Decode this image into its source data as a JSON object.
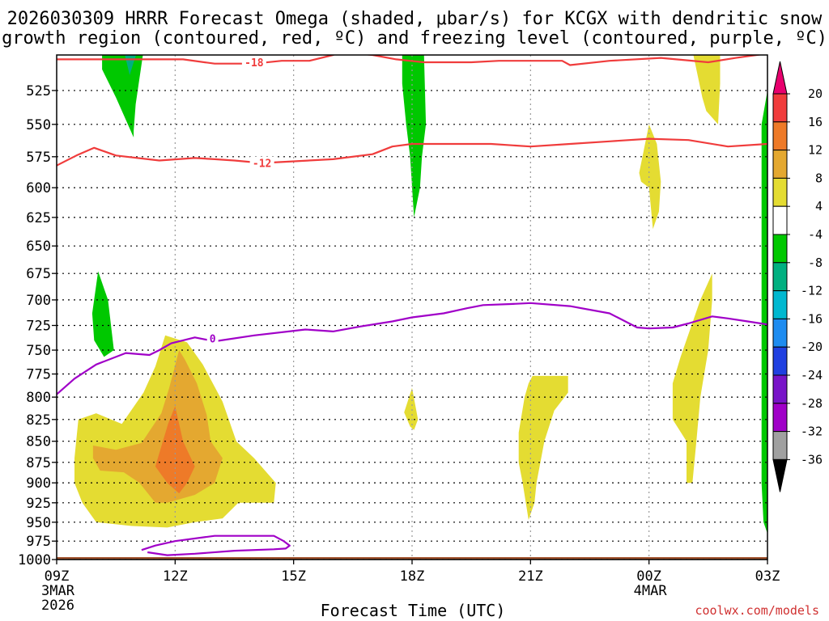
{
  "chart_data": {
    "type": "time-height contour",
    "title_line1": "2026030309 HRRR Forecast Omega (shaded, μbar/s) for KCGX with dendritic snow",
    "title_line2": "growth region (contoured, red, ºC) and freezing level (contoured, purple, ºC)",
    "xlabel": "Forecast Time (UTC)",
    "credit": "coolwx.com/models",
    "x_range_hours": [
      0,
      18
    ],
    "x_ticks": [
      {
        "hour": 0,
        "label": "09Z",
        "date": "3MAR",
        "year": "2026"
      },
      {
        "hour": 3,
        "label": "12Z",
        "date": "",
        "year": ""
      },
      {
        "hour": 6,
        "label": "15Z",
        "date": "",
        "year": ""
      },
      {
        "hour": 9,
        "label": "18Z",
        "date": "",
        "year": ""
      },
      {
        "hour": 12,
        "label": "21Z",
        "date": "",
        "year": ""
      },
      {
        "hour": 15,
        "label": "00Z",
        "date": "4MAR",
        "year": ""
      },
      {
        "hour": 18,
        "label": "03Z",
        "date": "",
        "year": ""
      }
    ],
    "y_range_mb": [
      500,
      1000
    ],
    "y_ticks": [
      "525",
      "550",
      "575",
      "600",
      "625",
      "650",
      "675",
      "700",
      "725",
      "750",
      "775",
      "800",
      "825",
      "850",
      "875",
      "900",
      "925",
      "950",
      "975",
      "1000"
    ],
    "colorbar": {
      "labels": [
        "20",
        "16",
        "12",
        "8",
        "4",
        "-4",
        "-8",
        "-12",
        "-16",
        "-20",
        "-24",
        "-28",
        "-32",
        "-36"
      ],
      "bins": [
        {
          "lo": 20,
          "hi": 24,
          "color": "#e8006e"
        },
        {
          "lo": 16,
          "hi": 20,
          "color": "#f03c3c"
        },
        {
          "lo": 12,
          "hi": 16,
          "color": "#ee7a28"
        },
        {
          "lo": 8,
          "hi": 12,
          "color": "#e4a830"
        },
        {
          "lo": 4,
          "hi": 8,
          "color": "#e4dc32"
        },
        {
          "lo": -4,
          "hi": 4,
          "color": "#ffffff"
        },
        {
          "lo": -8,
          "hi": -4,
          "color": "#00c800"
        },
        {
          "lo": -12,
          "hi": -8,
          "color": "#00b080"
        },
        {
          "lo": -16,
          "hi": -12,
          "color": "#00b8d0"
        },
        {
          "lo": -20,
          "hi": -16,
          "color": "#1e8cf0"
        },
        {
          "lo": -24,
          "hi": -20,
          "color": "#2040e0"
        },
        {
          "lo": -28,
          "hi": -24,
          "color": "#7814c8"
        },
        {
          "lo": -32,
          "hi": -28,
          "color": "#a000c8"
        },
        {
          "lo": -36,
          "hi": -32,
          "color": "#a0a0a0"
        },
        {
          "lo": -40,
          "hi": -36,
          "color": "#000000"
        }
      ]
    },
    "omega_regions": [
      {
        "id": "green-top-1",
        "color": "#00c800",
        "points": [
          [
            1.15,
            497
          ],
          [
            2.2,
            497
          ],
          [
            2.0,
            535
          ],
          [
            1.95,
            555
          ],
          [
            1.95,
            560
          ],
          [
            1.5,
            530
          ],
          [
            1.15,
            510
          ]
        ]
      },
      {
        "id": "teal-top-1",
        "color": "#00b080",
        "points": [
          [
            1.7,
            497
          ],
          [
            2.05,
            497
          ],
          [
            1.95,
            505
          ],
          [
            1.85,
            514
          ]
        ]
      },
      {
        "id": "green-left-1",
        "color": "#00c800",
        "points": [
          [
            0.9,
            713
          ],
          [
            1.05,
            673
          ],
          [
            1.3,
            700
          ],
          [
            1.45,
            750
          ],
          [
            1.2,
            757
          ],
          [
            0.95,
            740
          ]
        ]
      },
      {
        "id": "green-mid-1",
        "color": "#00c800",
        "points": [
          [
            8.75,
            497
          ],
          [
            9.3,
            497
          ],
          [
            9.35,
            550
          ],
          [
            9.25,
            575
          ],
          [
            9.2,
            600
          ],
          [
            9.05,
            625
          ],
          [
            8.95,
            575
          ],
          [
            8.85,
            550
          ],
          [
            8.75,
            520
          ]
        ]
      },
      {
        "id": "green-right-1",
        "color": "#00c800",
        "points": [
          [
            17.85,
            600
          ],
          [
            17.85,
            550
          ],
          [
            18,
            525
          ],
          [
            18,
            965
          ],
          [
            17.9,
            950
          ],
          [
            17.85,
            900
          ]
        ]
      },
      {
        "id": "yellow-top-right",
        "color": "#e4dc32",
        "points": [
          [
            16.1,
            497
          ],
          [
            16.8,
            497
          ],
          [
            16.8,
            520
          ],
          [
            16.75,
            550
          ],
          [
            16.45,
            540
          ],
          [
            16.35,
            530
          ]
        ]
      },
      {
        "id": "yellow-00z",
        "color": "#e4dc32",
        "points": [
          [
            14.75,
            588
          ],
          [
            15.0,
            550
          ],
          [
            15.2,
            565
          ],
          [
            15.3,
            595
          ],
          [
            15.25,
            620
          ],
          [
            15.1,
            635
          ],
          [
            15.0,
            600
          ],
          [
            14.8,
            595
          ]
        ]
      },
      {
        "id": "yellow-right-low",
        "color": "#e4dc32",
        "points": [
          [
            15.6,
            785
          ],
          [
            15.8,
            757
          ],
          [
            16.3,
            700
          ],
          [
            16.6,
            675
          ],
          [
            16.6,
            700
          ],
          [
            16.5,
            750
          ],
          [
            16.3,
            800
          ],
          [
            16.2,
            850
          ],
          [
            16.1,
            900
          ],
          [
            15.95,
            900
          ],
          [
            15.95,
            850
          ],
          [
            15.6,
            825
          ]
        ]
      },
      {
        "id": "yellow-21z",
        "color": "#e4dc32",
        "points": [
          [
            11.7,
            840
          ],
          [
            11.85,
            800
          ],
          [
            11.95,
            785
          ],
          [
            12.05,
            777
          ],
          [
            12.95,
            777
          ],
          [
            12.95,
            795
          ],
          [
            12.6,
            815
          ],
          [
            12.35,
            850
          ],
          [
            12.15,
            900
          ],
          [
            12.1,
            925
          ],
          [
            11.95,
            947
          ],
          [
            11.8,
            900
          ],
          [
            11.7,
            875
          ]
        ]
      },
      {
        "id": "yellow-19z",
        "color": "#e4dc32",
        "points": [
          [
            8.8,
            817
          ],
          [
            9.0,
            790
          ],
          [
            9.15,
            825
          ],
          [
            9.05,
            837
          ],
          [
            8.95,
            833
          ]
        ]
      },
      {
        "id": "yellow-main",
        "color": "#e4dc32",
        "points": [
          [
            0.45,
            870
          ],
          [
            0.55,
            825
          ],
          [
            1.0,
            818
          ],
          [
            1.65,
            830
          ],
          [
            2.2,
            795
          ],
          [
            2.5,
            767
          ],
          [
            2.75,
            735
          ],
          [
            3.3,
            742
          ],
          [
            3.7,
            765
          ],
          [
            4.2,
            805
          ],
          [
            4.55,
            850
          ],
          [
            5.0,
            870
          ],
          [
            5.55,
            900
          ],
          [
            5.5,
            925
          ],
          [
            4.6,
            925
          ],
          [
            4.2,
            945
          ],
          [
            3.5,
            950
          ],
          [
            2.8,
            957
          ],
          [
            1.9,
            955
          ],
          [
            1.0,
            950
          ],
          [
            0.65,
            925
          ],
          [
            0.45,
            900
          ]
        ]
      },
      {
        "id": "gold-main",
        "color": "#e4a830",
        "points": [
          [
            0.92,
            855
          ],
          [
            1.5,
            860
          ],
          [
            2.15,
            852
          ],
          [
            2.65,
            818
          ],
          [
            2.85,
            790
          ],
          [
            3.1,
            750
          ],
          [
            3.25,
            760
          ],
          [
            3.55,
            785
          ],
          [
            3.8,
            820
          ],
          [
            3.9,
            850
          ],
          [
            4.2,
            870
          ],
          [
            4.0,
            900
          ],
          [
            3.5,
            915
          ],
          [
            2.8,
            925
          ],
          [
            2.5,
            925
          ],
          [
            2.1,
            900
          ],
          [
            1.7,
            887
          ],
          [
            1.1,
            885
          ],
          [
            0.92,
            870
          ]
        ]
      },
      {
        "id": "orange-core",
        "color": "#ee7a28",
        "points": [
          [
            2.5,
            880
          ],
          [
            2.82,
            830
          ],
          [
            3.0,
            810
          ],
          [
            3.2,
            850
          ],
          [
            3.5,
            880
          ],
          [
            3.3,
            900
          ],
          [
            3.1,
            913
          ],
          [
            2.8,
            900
          ]
        ]
      }
    ],
    "brown_ground": {
      "color": "#a0522d",
      "start_hour": 0,
      "end_hour": 18
    },
    "dgz_contours": [
      {
        "label": "-18",
        "label_at": [
          5.0,
          505
        ],
        "color": "#f03c3c",
        "points": [
          [
            0,
            503
          ],
          [
            0.7,
            503
          ],
          [
            1.8,
            503
          ],
          [
            3.2,
            503
          ],
          [
            4.0,
            506
          ],
          [
            5.0,
            506
          ],
          [
            5.7,
            504
          ],
          [
            6.4,
            504
          ],
          [
            7.0,
            500
          ],
          [
            7.2,
            498
          ],
          [
            8.0,
            500
          ],
          [
            8.6,
            503
          ],
          [
            9.3,
            505
          ],
          [
            10.5,
            505
          ],
          [
            11.2,
            504
          ],
          [
            12.8,
            504
          ],
          [
            13.0,
            507
          ],
          [
            14.0,
            504
          ],
          [
            15.3,
            502
          ],
          [
            16.5,
            505
          ],
          [
            17.2,
            502
          ],
          [
            18,
            499
          ]
        ]
      },
      {
        "label": "-12",
        "label_at": [
          5.2,
          580
        ],
        "color": "#f03c3c",
        "points": [
          [
            0,
            582
          ],
          [
            0.5,
            574
          ],
          [
            0.95,
            568
          ],
          [
            1.5,
            574
          ],
          [
            2.6,
            578
          ],
          [
            3.5,
            576
          ],
          [
            4.0,
            577
          ],
          [
            4.5,
            578
          ],
          [
            5.2,
            580
          ],
          [
            7.0,
            577
          ],
          [
            8.0,
            573
          ],
          [
            8.5,
            567
          ],
          [
            9.0,
            565
          ],
          [
            10.0,
            565
          ],
          [
            11.0,
            565
          ],
          [
            12.0,
            567
          ],
          [
            13.0,
            565
          ],
          [
            14.0,
            563
          ],
          [
            15.0,
            561
          ],
          [
            16.0,
            562
          ],
          [
            17.0,
            567
          ],
          [
            18,
            565
          ]
        ]
      },
      {
        "label": "0",
        "label_at": [
          3.95,
          738
        ],
        "color": "#a000c8",
        "points": [
          [
            0,
            797
          ],
          [
            0.45,
            780
          ],
          [
            1.0,
            765
          ],
          [
            1.75,
            753
          ],
          [
            2.35,
            755
          ],
          [
            2.6,
            750
          ],
          [
            2.9,
            743
          ],
          [
            3.5,
            737
          ],
          [
            4.0,
            741
          ],
          [
            5.0,
            735
          ],
          [
            6.3,
            729
          ],
          [
            7.0,
            731
          ],
          [
            7.7,
            726
          ],
          [
            8.5,
            721
          ],
          [
            9.0,
            717
          ],
          [
            9.8,
            713
          ],
          [
            10.4,
            708
          ],
          [
            10.8,
            705
          ],
          [
            11.5,
            704
          ],
          [
            12.0,
            703
          ],
          [
            13.0,
            706
          ],
          [
            14.0,
            713
          ],
          [
            14.7,
            727
          ],
          [
            15.0,
            728
          ],
          [
            15.6,
            727
          ],
          [
            16.0,
            723
          ],
          [
            16.6,
            716
          ],
          [
            17.0,
            718
          ],
          [
            17.5,
            721
          ],
          [
            18,
            724
          ]
        ]
      },
      {
        "label": "",
        "label_at": null,
        "color": "#a000c8",
        "points": [
          [
            2.15,
            987
          ],
          [
            2.5,
            981
          ],
          [
            3.0,
            975
          ],
          [
            4.0,
            968
          ],
          [
            5.5,
            968
          ],
          [
            5.75,
            975
          ],
          [
            5.9,
            981
          ],
          [
            5.8,
            985
          ],
          [
            5.5,
            986
          ],
          [
            4.5,
            988
          ],
          [
            3.5,
            992
          ],
          [
            2.8,
            994
          ],
          [
            2.3,
            990
          ]
        ]
      }
    ]
  }
}
